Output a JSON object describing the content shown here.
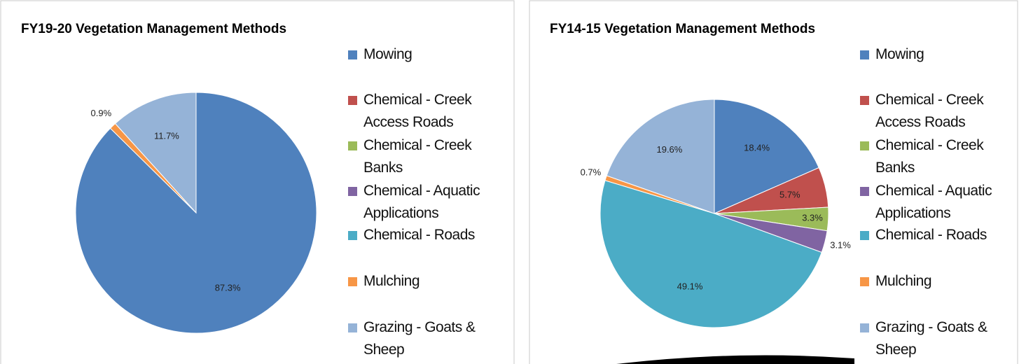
{
  "chart_data": [
    {
      "type": "pie",
      "title": "FY19-20 Vegetation Management Methods",
      "categories": [
        "Mowing",
        "Chemical - Creek Access Roads",
        "Chemical - Creek Banks",
        "Chemical - Aquatic Applications",
        "Chemical - Roads",
        "Mulching",
        "Grazing - Goats & Sheep"
      ],
      "values": [
        87.3,
        0,
        0,
        0,
        0,
        0.9,
        11.7
      ],
      "value_labels": [
        "87.3%",
        null,
        null,
        null,
        null,
        "0.9%",
        "11.7%"
      ],
      "colors": [
        "#4f81bd",
        "#c0504d",
        "#9bbb59",
        "#8064a2",
        "#4bacc6",
        "#f79646",
        "#95b3d7"
      ],
      "legend": "right"
    },
    {
      "type": "pie",
      "title": "FY14-15 Vegetation Management Methods",
      "categories": [
        "Mowing",
        "Chemical - Creek Access Roads",
        "Chemical - Creek Banks",
        "Chemical - Aquatic Applications",
        "Chemical - Roads",
        "Mulching",
        "Grazing - Goats & Sheep"
      ],
      "values": [
        18.4,
        5.7,
        3.3,
        3.1,
        49.1,
        0.7,
        19.6
      ],
      "value_labels": [
        "18.4%",
        "5.7%",
        "3.3%",
        "3.1%",
        "49.1%",
        "0.7%",
        "19.6%"
      ],
      "colors": [
        "#4f81bd",
        "#c0504d",
        "#9bbb59",
        "#8064a2",
        "#4bacc6",
        "#f79646",
        "#95b3d7"
      ],
      "legend": "right"
    }
  ]
}
